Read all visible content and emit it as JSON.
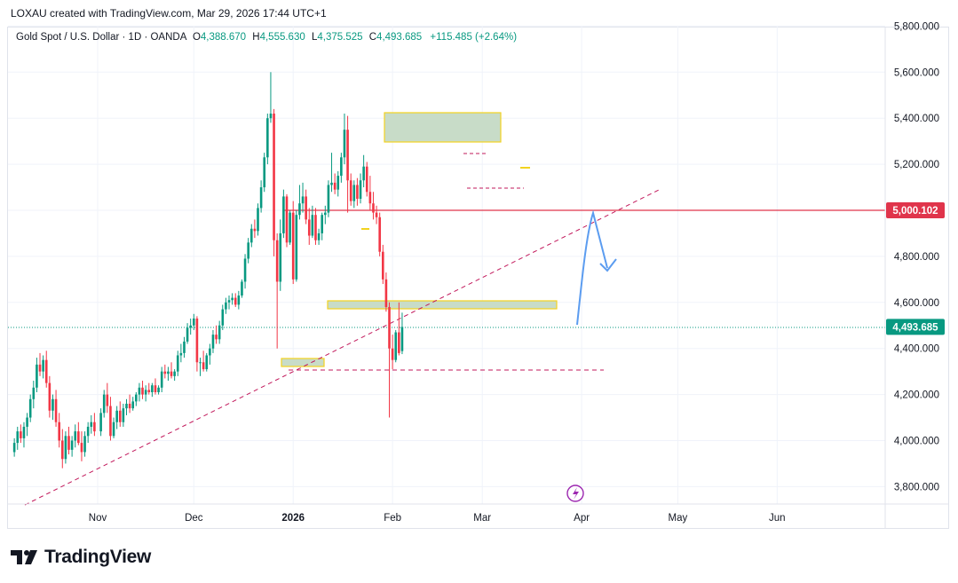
{
  "header": {
    "credit": "LOXAU created with TradingView.com, Mar 29, 2026 17:44 UTC+1"
  },
  "legend": {
    "symbol": "Gold Spot / U.S. Dollar · 1D · OANDA",
    "o_label": "O",
    "o_value": "4,388.670",
    "h_label": "H",
    "h_value": "4,555.630",
    "l_label": "L",
    "l_value": "4,375.525",
    "c_label": "C",
    "c_value": "4,493.685",
    "change": "+115.485 (+2.64%)"
  },
  "colors": {
    "up": "#089981",
    "down": "#f23645",
    "zone_fill": "#c8dcc8",
    "zone_border": "#f2d320",
    "arrow": "#5b9cf0",
    "resistance": "#e0344b",
    "trend": "#c2185b"
  },
  "chart_data": {
    "type": "candlestick",
    "title": "Gold Spot / U.S. Dollar · 1D · OANDA",
    "xlabel": "",
    "ylabel": "",
    "ylim": [
      3700,
      5820
    ],
    "y_ticks": [
      "3,800.000",
      "4,000.000",
      "4,200.000",
      "4,400.000",
      "4,600.000",
      "4,800.000",
      "5,000.000",
      "5,200.000",
      "5,400.000",
      "5,600.000",
      "5,800.000"
    ],
    "y_tick_values": [
      3800,
      4000,
      4200,
      4400,
      4600,
      4800,
      5000,
      5200,
      5400,
      5600,
      5800
    ],
    "x_ticks": [
      {
        "label": "Nov",
        "day": 0,
        "bold": false
      },
      {
        "label": "Dec",
        "day": 30,
        "bold": false
      },
      {
        "label": "2026",
        "day": 61,
        "bold": true
      },
      {
        "label": "Feb",
        "day": 92,
        "bold": false
      },
      {
        "label": "Mar",
        "day": 120,
        "bold": false
      },
      {
        "label": "Apr",
        "day": 151,
        "bold": false
      },
      {
        "label": "May",
        "day": 181,
        "bold": false
      },
      {
        "label": "Jun",
        "day": 212,
        "bold": false
      }
    ],
    "candles": [
      [
        -26,
        3950,
        4010,
        3930,
        3990
      ],
      [
        -25,
        3990,
        4060,
        3960,
        4040
      ],
      [
        -24,
        4040,
        4070,
        3990,
        4010
      ],
      [
        -23,
        4010,
        4080,
        3970,
        4060
      ],
      [
        -22,
        4060,
        4120,
        4020,
        4100
      ],
      [
        -21,
        4100,
        4200,
        4080,
        4180
      ],
      [
        -20,
        4180,
        4260,
        4140,
        4230
      ],
      [
        -19,
        4230,
        4360,
        4210,
        4330
      ],
      [
        -18,
        4330,
        4380,
        4280,
        4300
      ],
      [
        -17,
        4300,
        4370,
        4270,
        4350
      ],
      [
        -16,
        4350,
        4390,
        4230,
        4250
      ],
      [
        -15,
        4250,
        4280,
        4100,
        4130
      ],
      [
        -14,
        4130,
        4200,
        4090,
        4180
      ],
      [
        -13,
        4180,
        4220,
        4060,
        4080
      ],
      [
        -12,
        4080,
        4120,
        3970,
        4000
      ],
      [
        -11,
        4000,
        4050,
        3880,
        3920
      ],
      [
        -10,
        3920,
        4040,
        3900,
        4020
      ],
      [
        -9,
        4020,
        4060,
        3940,
        3960
      ],
      [
        -8,
        3960,
        4020,
        3930,
        4000
      ],
      [
        -7,
        4000,
        4070,
        3970,
        4040
      ],
      [
        -6,
        4040,
        4080,
        3980,
        3990
      ],
      [
        -5,
        3990,
        4040,
        3910,
        3950
      ],
      [
        -4,
        3950,
        4040,
        3930,
        4020
      ],
      [
        -3,
        4020,
        4080,
        3990,
        4060
      ],
      [
        -2,
        4060,
        4110,
        4030,
        4080
      ],
      [
        -1,
        4080,
        4120,
        4020,
        4040
      ],
      [
        1,
        4040,
        4140,
        4020,
        4120
      ],
      [
        2,
        4120,
        4220,
        4100,
        4200
      ],
      [
        3,
        4200,
        4250,
        4120,
        4150
      ],
      [
        4,
        4150,
        4190,
        4000,
        4020
      ],
      [
        5,
        4020,
        4100,
        4010,
        4080
      ],
      [
        6,
        4080,
        4150,
        4050,
        4130
      ],
      [
        7,
        4130,
        4170,
        4060,
        4080
      ],
      [
        8,
        4080,
        4160,
        4060,
        4140
      ],
      [
        9,
        4140,
        4180,
        4110,
        4160
      ],
      [
        10,
        4160,
        4200,
        4120,
        4140
      ],
      [
        11,
        4140,
        4190,
        4130,
        4170
      ],
      [
        12,
        4170,
        4210,
        4150,
        4200
      ],
      [
        13,
        4200,
        4250,
        4170,
        4230
      ],
      [
        14,
        4230,
        4260,
        4180,
        4200
      ],
      [
        15,
        4200,
        4240,
        4170,
        4220
      ],
      [
        16,
        4220,
        4250,
        4200,
        4210
      ],
      [
        17,
        4210,
        4250,
        4190,
        4240
      ],
      [
        18,
        4240,
        4270,
        4200,
        4210
      ],
      [
        19,
        4210,
        4240,
        4200,
        4230
      ],
      [
        20,
        4230,
        4320,
        4210,
        4300
      ],
      [
        21,
        4300,
        4330,
        4270,
        4290
      ],
      [
        22,
        4290,
        4320,
        4260,
        4300
      ],
      [
        23,
        4300,
        4340,
        4270,
        4280
      ],
      [
        24,
        4280,
        4310,
        4260,
        4300
      ],
      [
        25,
        4300,
        4390,
        4280,
        4370
      ],
      [
        26,
        4370,
        4420,
        4340,
        4380
      ],
      [
        27,
        4380,
        4450,
        4360,
        4430
      ],
      [
        28,
        4430,
        4510,
        4420,
        4490
      ],
      [
        29,
        4490,
        4530,
        4460,
        4500
      ],
      [
        30,
        4500,
        4550,
        4480,
        4530
      ],
      [
        31,
        4530,
        4540,
        4300,
        4340
      ],
      [
        32,
        4340,
        4360,
        4280,
        4340
      ],
      [
        33,
        4340,
        4390,
        4300,
        4310
      ],
      [
        34,
        4310,
        4380,
        4300,
        4370
      ],
      [
        35,
        4370,
        4420,
        4330,
        4400
      ],
      [
        36,
        4400,
        4480,
        4380,
        4460
      ],
      [
        37,
        4460,
        4500,
        4420,
        4440
      ],
      [
        38,
        4440,
        4520,
        4420,
        4500
      ],
      [
        39,
        4500,
        4590,
        4480,
        4570
      ],
      [
        40,
        4570,
        4620,
        4550,
        4600
      ],
      [
        41,
        4600,
        4630,
        4570,
        4610
      ],
      [
        42,
        4610,
        4640,
        4590,
        4620
      ],
      [
        43,
        4620,
        4640,
        4580,
        4590
      ],
      [
        44,
        4590,
        4650,
        4570,
        4630
      ],
      [
        45,
        4630,
        4700,
        4620,
        4690
      ],
      [
        46,
        4690,
        4810,
        4660,
        4790
      ],
      [
        47,
        4790,
        4880,
        4770,
        4860
      ],
      [
        48,
        4860,
        4940,
        4840,
        4920
      ],
      [
        49,
        4920,
        4960,
        4880,
        4910
      ],
      [
        50,
        4910,
        5030,
        4890,
        5010
      ],
      [
        51,
        5010,
        5130,
        4990,
        5100
      ],
      [
        52,
        5100,
        5250,
        5080,
        5230
      ],
      [
        53,
        5230,
        5420,
        5200,
        5400
      ],
      [
        54,
        5400,
        5600,
        5380,
        5420
      ],
      [
        55,
        5420,
        5440,
        4800,
        4870
      ],
      [
        56,
        4870,
        4900,
        4400,
        4690
      ],
      [
        57,
        4690,
        4960,
        4650,
        4900
      ],
      [
        58,
        4900,
        5090,
        4880,
        5060
      ],
      [
        59,
        5060,
        5070,
        4840,
        4860
      ],
      [
        60,
        4860,
        5000,
        4850,
        4990
      ],
      [
        61,
        4990,
        5040,
        4680,
        4700
      ],
      [
        62,
        4700,
        5000,
        4690,
        4980
      ],
      [
        63,
        4980,
        5110,
        4960,
        5030
      ],
      [
        64,
        5030,
        5120,
        4990,
        5060
      ],
      [
        65,
        5060,
        5090,
        4940,
        4960
      ],
      [
        66,
        4960,
        5010,
        4850,
        4890
      ],
      [
        67,
        4890,
        5020,
        4880,
        4980
      ],
      [
        68,
        4980,
        5010,
        4850,
        4870
      ],
      [
        69,
        4870,
        4920,
        4850,
        4900
      ],
      [
        70,
        4900,
        4990,
        4870,
        4980
      ],
      [
        71,
        4980,
        5020,
        4940,
        4990
      ],
      [
        72,
        4990,
        5130,
        4970,
        5110
      ],
      [
        73,
        5110,
        5250,
        5080,
        5120
      ],
      [
        74,
        5120,
        5160,
        5070,
        5090
      ],
      [
        75,
        5090,
        5170,
        5060,
        5150
      ],
      [
        76,
        5150,
        5250,
        5120,
        5230
      ],
      [
        77,
        5230,
        5420,
        5200,
        5350
      ],
      [
        78,
        5350,
        5410,
        4990,
        5130
      ],
      [
        79,
        5130,
        5160,
        5020,
        5040
      ],
      [
        80,
        5040,
        5130,
        5010,
        5110
      ],
      [
        81,
        5110,
        5140,
        5020,
        5050
      ],
      [
        82,
        5050,
        5160,
        5030,
        5130
      ],
      [
        83,
        5130,
        5240,
        5100,
        5190
      ],
      [
        84,
        5190,
        5210,
        5060,
        5080
      ],
      [
        85,
        5080,
        5150,
        5000,
        5030
      ],
      [
        86,
        5030,
        5080,
        4960,
        4990
      ],
      [
        87,
        4990,
        5020,
        4940,
        4970
      ],
      [
        88,
        4970,
        4990,
        4800,
        4820
      ],
      [
        89,
        4820,
        4850,
        4680,
        4700
      ],
      [
        90,
        4700,
        4730,
        4560,
        4580
      ],
      [
        91,
        4580,
        4600,
        4100,
        4400
      ],
      [
        92,
        4400,
        4460,
        4310,
        4350
      ],
      [
        93,
        4350,
        4480,
        4340,
        4470
      ],
      [
        94,
        4470,
        4600,
        4370,
        4380
      ],
      [
        95,
        4388.67,
        4555.63,
        4375.525,
        4493.685
      ]
    ],
    "levels": [
      {
        "label": "5,000.102",
        "value": 5000.102,
        "color": "#e0344b"
      },
      {
        "label": "4,493.685",
        "value": 4493.685,
        "color": "#089981",
        "dotted": true
      }
    ],
    "dashed_support": 4300,
    "annotation_icon": "lightning-icon"
  },
  "branding": {
    "logo_text": "TradingView",
    "logo_icon": "tradingview-logo-icon"
  }
}
